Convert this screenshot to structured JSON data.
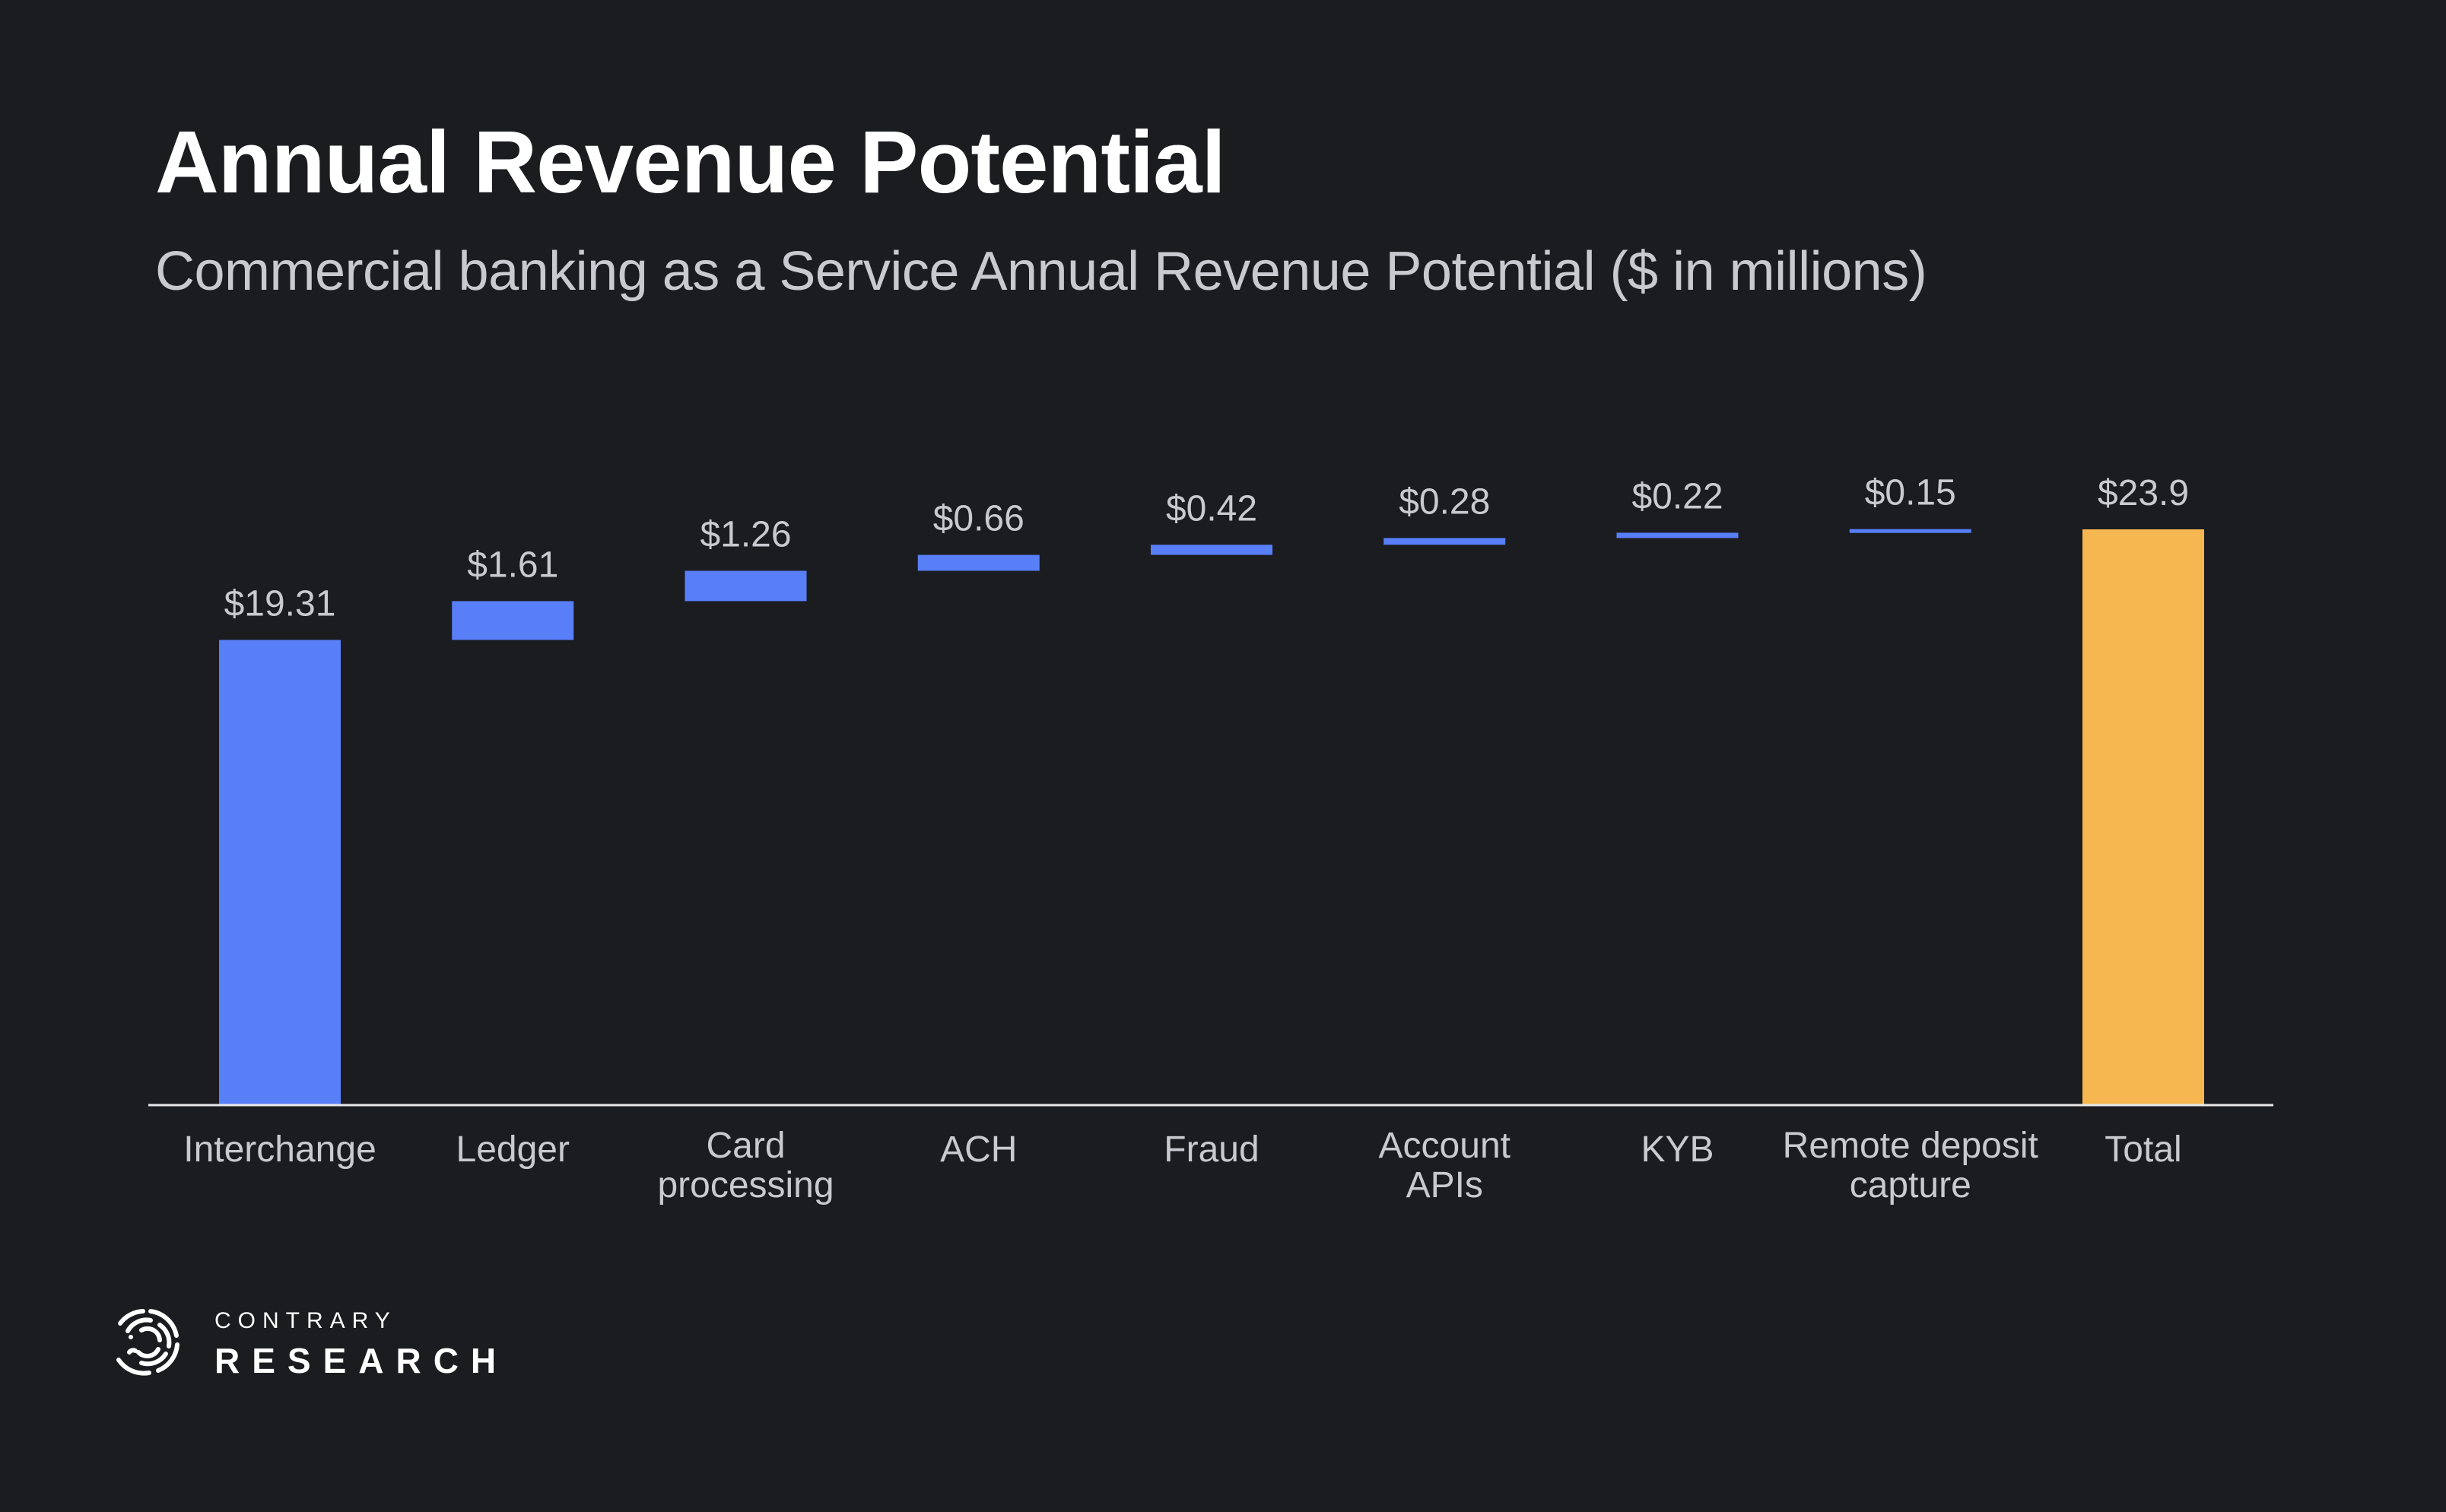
{
  "header": {
    "title": "Annual Revenue Potential",
    "subtitle": "Commercial banking as a Service Annual Revenue Potential ($ in millions)"
  },
  "colors": {
    "background": "#1b1c20",
    "increment": "#587ff8",
    "total": "#f7b750",
    "axis": "#e8e8ea",
    "label_text": "#c9cacf",
    "title_text": "#ffffff"
  },
  "chart_data": {
    "type": "bar",
    "subtype": "waterfall",
    "title": "Annual Revenue Potential",
    "subtitle": "Commercial banking as a Service Annual Revenue Potential ($ in millions)",
    "xlabel": "",
    "ylabel": "",
    "ylim": [
      0,
      23.9
    ],
    "grid": false,
    "legend": "none",
    "categories": [
      "Interchange",
      "Ledger",
      "Card processing",
      "ACH",
      "Fraud",
      "Account APIs",
      "KYB",
      "Remote deposit capture",
      "Total"
    ],
    "category_lines": [
      [
        "Interchange"
      ],
      [
        "Ledger"
      ],
      [
        "Card",
        "processing"
      ],
      [
        "ACH"
      ],
      [
        "Fraud"
      ],
      [
        "Account",
        "APIs"
      ],
      [
        "KYB"
      ],
      [
        "Remote deposit",
        "capture"
      ],
      [
        "Total"
      ]
    ],
    "values": [
      19.31,
      1.61,
      1.26,
      0.66,
      0.42,
      0.28,
      0.22,
      0.15,
      23.9
    ],
    "data_labels": [
      "$19.31",
      "$1.61",
      "$1.26",
      "$0.66",
      "$0.42",
      "$0.28",
      "$0.22",
      "$0.15",
      "$23.9"
    ],
    "is_total": [
      false,
      false,
      false,
      false,
      false,
      false,
      false,
      false,
      true
    ]
  },
  "branding": {
    "logo_top": "CONTRARY",
    "logo_bottom": "RESEARCH"
  }
}
